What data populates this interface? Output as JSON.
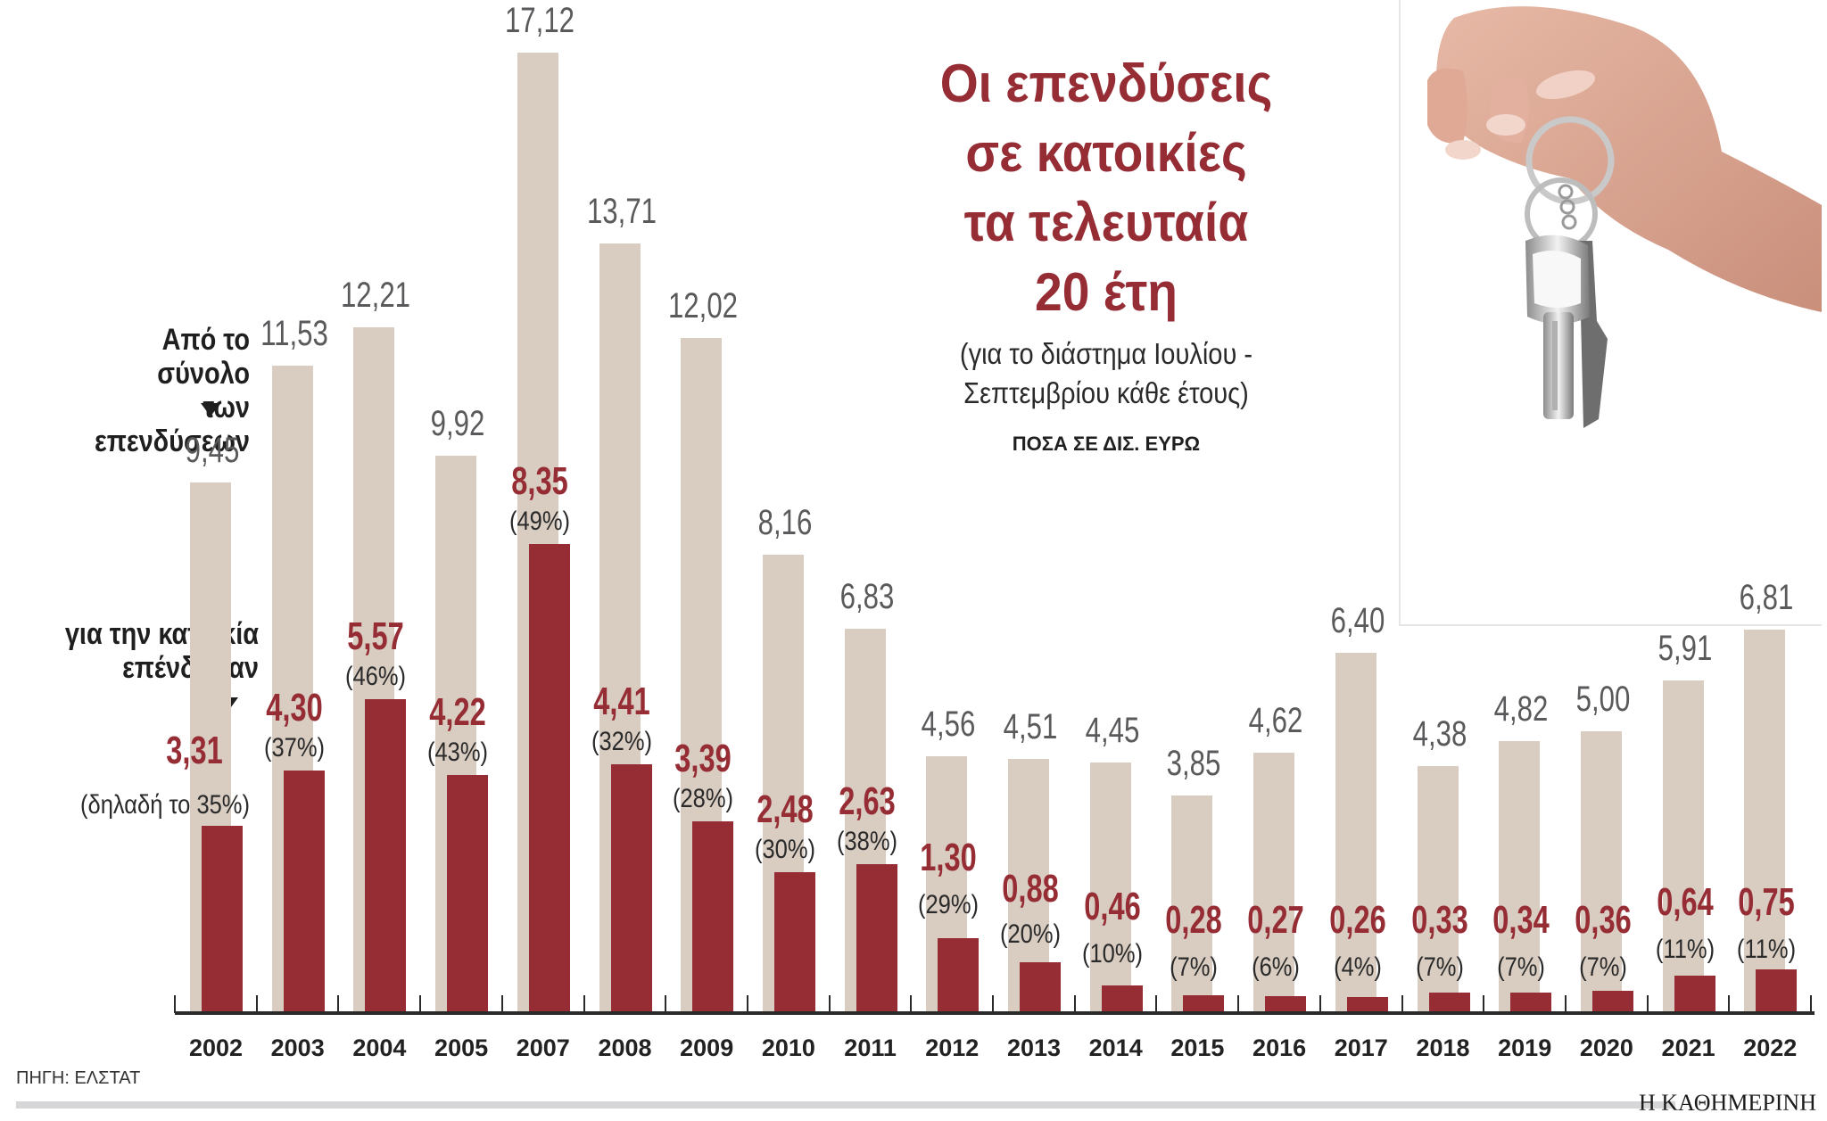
{
  "title": {
    "lines": [
      "Οι επενδύσεις",
      "σε κατοικίες",
      "τα τελευταία",
      "20 έτη"
    ],
    "subtitle_lines": [
      "(για το διάστημα Ιουλίου -",
      "Σεπτεμβρίου κάθε έτους)"
    ],
    "units": "ΠΟΣΑ ΣΕ ΔΙΣ. ΕΥΡΩ"
  },
  "legend": {
    "total_label_lines": [
      "Από το σύνολο",
      "των επενδύσεων"
    ],
    "housing_label_lines": [
      "για την κατοικία",
      "επένδυσαν"
    ],
    "first_pct_note": "(δηλαδή το 35%)"
  },
  "colors": {
    "total_bar": "#d9cdc2",
    "housing_bar": "#962d35",
    "total_value_text": "#5a5a5c",
    "title": "#962d35"
  },
  "footer": {
    "source": "ΠΗΓΗ: ΕΛΣΤΑΤ",
    "brand": "Η ΚΑΘΗΜΕΡΙΝΗ"
  },
  "photo": {
    "description": "hand-holding-keys-photo"
  },
  "chart_data": {
    "type": "bar",
    "title": "Οι επενδύσεις σε κατοικίες τα τελευταία 20 έτη",
    "subtitle": "(για το διάστημα Ιουλίου - Σεπτεμβρίου κάθε έτους)",
    "ylabel": "ΠΟΣΑ ΣΕ ΔΙΣ. ΕΥΡΩ",
    "xlabel": "",
    "ylim": [
      0,
      17.5
    ],
    "grid": false,
    "categories": [
      "2002",
      "2003",
      "2004",
      "2005",
      "2007",
      "2008",
      "2009",
      "2010",
      "2011",
      "2012",
      "2013",
      "2014",
      "2015",
      "2016",
      "2017",
      "2018",
      "2019",
      "2020",
      "2021",
      "2022"
    ],
    "series": [
      {
        "name": "Από το σύνολο των επενδύσεων",
        "values": [
          9.45,
          11.53,
          12.21,
          9.92,
          17.12,
          13.71,
          12.02,
          8.16,
          6.83,
          4.56,
          4.51,
          4.45,
          3.85,
          4.62,
          6.4,
          4.38,
          4.82,
          5.0,
          5.91,
          6.81
        ],
        "labels": [
          "9,45",
          "11,53",
          "12,21",
          "9,92",
          "17,12",
          "13,71",
          "12,02",
          "8,16",
          "6,83",
          "4,56",
          "4,51",
          "4,45",
          "3,85",
          "4,62",
          "6,40",
          "4,38",
          "4,82",
          "5,00",
          "5,91",
          "6,81"
        ]
      },
      {
        "name": "για την κατοικία επένδυσαν",
        "values": [
          3.31,
          4.3,
          5.57,
          4.22,
          8.35,
          4.41,
          3.39,
          2.48,
          2.63,
          1.3,
          0.88,
          0.46,
          0.28,
          0.27,
          0.26,
          0.33,
          0.34,
          0.36,
          0.64,
          0.75
        ],
        "labels": [
          "3,31",
          "4,30",
          "5,57",
          "4,22",
          "8,35",
          "4,41",
          "3,39",
          "2,48",
          "2,63",
          "1,30",
          "0,88",
          "0,46",
          "0,28",
          "0,27",
          "0,26",
          "0,33",
          "0,34",
          "0,36",
          "0,64",
          "0,75"
        ],
        "share_labels": [
          "(δηλαδή το 35%)",
          "(37%)",
          "(46%)",
          "(43%)",
          "(49%)",
          "(32%)",
          "(28%)",
          "(30%)",
          "(38%)",
          "(29%)",
          "(20%)",
          "(10%)",
          "(7%)",
          "(6%)",
          "(4%)",
          "(7%)",
          "(7%)",
          "(7%)",
          "(11%)",
          "(11%)"
        ],
        "share_pct": [
          35,
          37,
          46,
          43,
          49,
          32,
          28,
          30,
          38,
          29,
          20,
          10,
          7,
          6,
          4,
          7,
          7,
          7,
          11,
          11
        ]
      }
    ],
    "legend_position": "left-inline",
    "source": "ΠΗΓΗ: ΕΛΣΤΑΤ"
  }
}
